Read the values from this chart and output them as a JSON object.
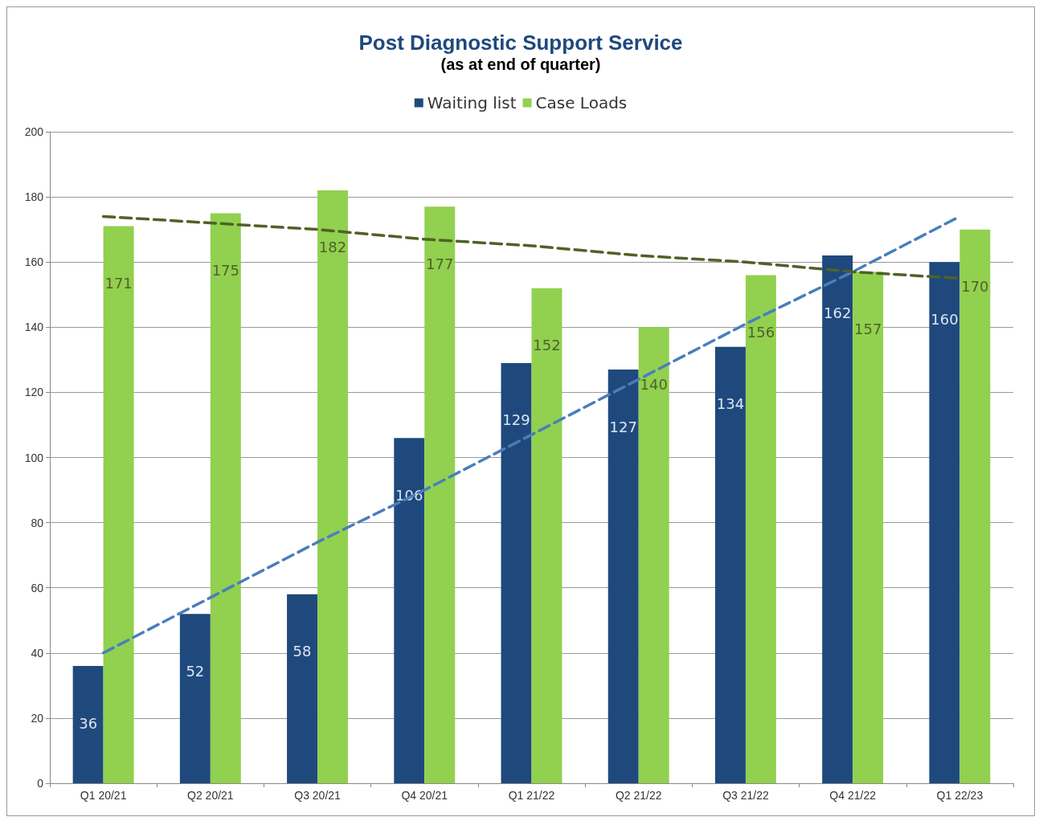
{
  "chart_data": {
    "type": "bar",
    "title": "Post Diagnostic Support Service",
    "subtitle": "(as at end of quarter)",
    "categories": [
      "Q1 20/21",
      "Q2 20/21",
      "Q3 20/21",
      "Q4 20/21",
      "Q1 21/22",
      "Q2 21/22",
      "Q3 21/22",
      "Q4 21/22",
      "Q1 22/23"
    ],
    "series": [
      {
        "name": "Waiting list",
        "color": "#1f497d",
        "values": [
          36,
          52,
          58,
          106,
          129,
          127,
          134,
          162,
          160
        ],
        "value_labels": [
          "36",
          "52",
          "58",
          "106",
          "129",
          "127",
          "134",
          "162",
          "160"
        ]
      },
      {
        "name": "Case Loads",
        "color": "#92d050",
        "values": [
          171,
          175,
          182,
          177,
          152,
          140,
          156,
          157,
          170
        ],
        "value_labels": [
          "171",
          "175",
          "182",
          "177",
          "152",
          "140",
          "156",
          "157",
          "170"
        ]
      },
      {
        "type": "line",
        "color": "#4a7ebb",
        "line_style": "dashed",
        "marker": "none",
        "values": [
          40,
          57,
          74,
          90,
          107,
          124,
          141,
          157,
          174
        ]
      },
      {
        "type": "line",
        "color": "#4f6228",
        "line_style": "dashed",
        "marker": "none",
        "values": [
          174,
          172,
          170,
          167,
          165,
          162,
          160,
          157,
          155
        ]
      }
    ],
    "ylim": [
      0,
      200
    ],
    "yticks": [
      0,
      20,
      40,
      60,
      80,
      100,
      120,
      140,
      160,
      180,
      200
    ],
    "grid": "y",
    "legend": "top"
  }
}
